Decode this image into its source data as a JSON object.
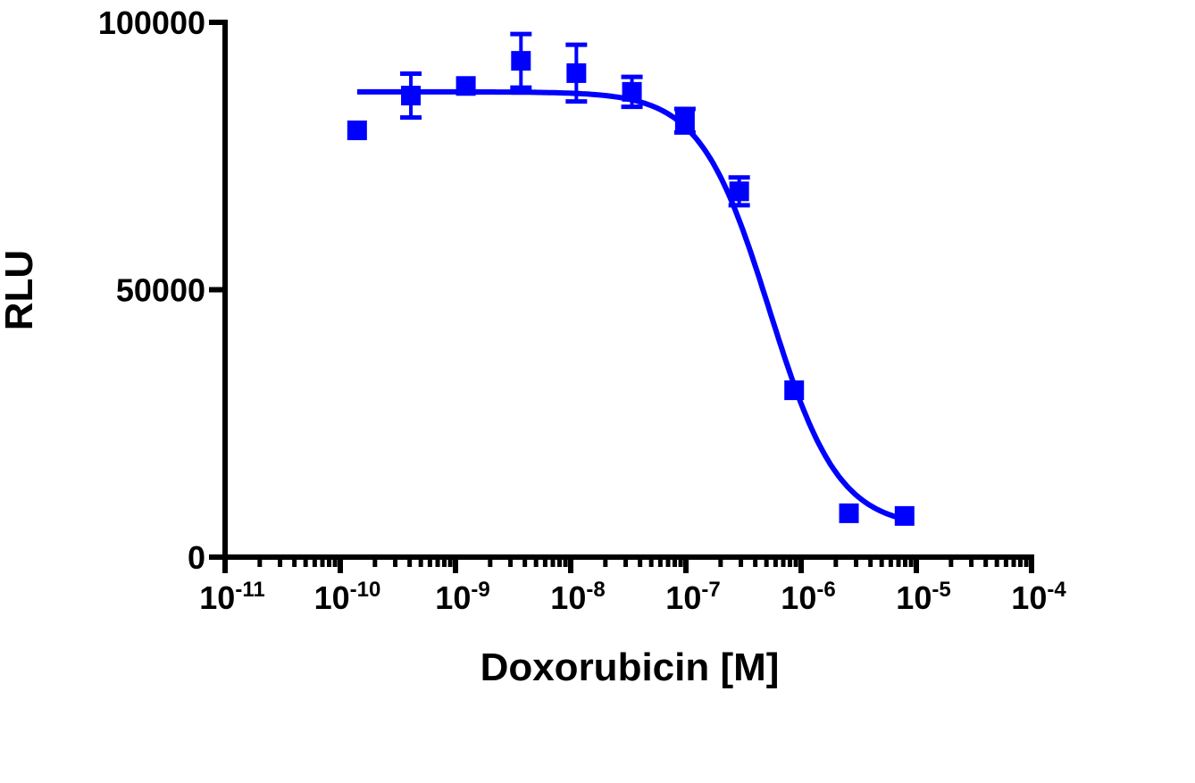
{
  "chart_data": {
    "type": "scatter",
    "title": "",
    "xlabel": "Doxorubicin [M]",
    "ylabel": "RLU",
    "x_scale": "log10",
    "xlim": [
      1e-11,
      0.0001
    ],
    "ylim": [
      0,
      100000
    ],
    "grid": false,
    "legend": "none",
    "color": "#0000ff",
    "x_tick_labels": [
      {
        "base": "10",
        "exp": "-11"
      },
      {
        "base": "10",
        "exp": "-10"
      },
      {
        "base": "10",
        "exp": "-9"
      },
      {
        "base": "10",
        "exp": "-8"
      },
      {
        "base": "10",
        "exp": "-7"
      },
      {
        "base": "10",
        "exp": "-6"
      },
      {
        "base": "10",
        "exp": "-5"
      },
      {
        "base": "10",
        "exp": "-4"
      }
    ],
    "y_ticks": [
      0,
      50000,
      100000
    ],
    "y_tick_labels": [
      "0",
      "50000",
      "100000"
    ],
    "series": [
      {
        "marker": "square",
        "points": [
          {
            "x": 1.4e-10,
            "y": 79800,
            "err": 0
          },
          {
            "x": 4.1e-10,
            "y": 86300,
            "err": 4100
          },
          {
            "x": 1.23e-09,
            "y": 88100,
            "err": 0
          },
          {
            "x": 3.7e-09,
            "y": 92800,
            "err": 5000
          },
          {
            "x": 1.12e-08,
            "y": 90500,
            "err": 5300
          },
          {
            "x": 3.4e-08,
            "y": 87000,
            "err": 2800
          },
          {
            "x": 9.8e-08,
            "y": 81600,
            "err": 2200
          },
          {
            "x": 2.9e-07,
            "y": 68400,
            "err": 2600
          },
          {
            "x": 8.7e-07,
            "y": 31200,
            "err": 0
          },
          {
            "x": 2.6e-06,
            "y": 8200,
            "err": 0
          },
          {
            "x": 7.9e-06,
            "y": 7700,
            "err": 0
          }
        ],
        "fit": {
          "model": "sigmoidal dose-response",
          "top": 87000,
          "bottom": 5500,
          "ec50": 5.3e-07,
          "hill_slope": -1.45,
          "x_range": [
            1.4e-10,
            7.9e-06
          ]
        }
      }
    ]
  }
}
